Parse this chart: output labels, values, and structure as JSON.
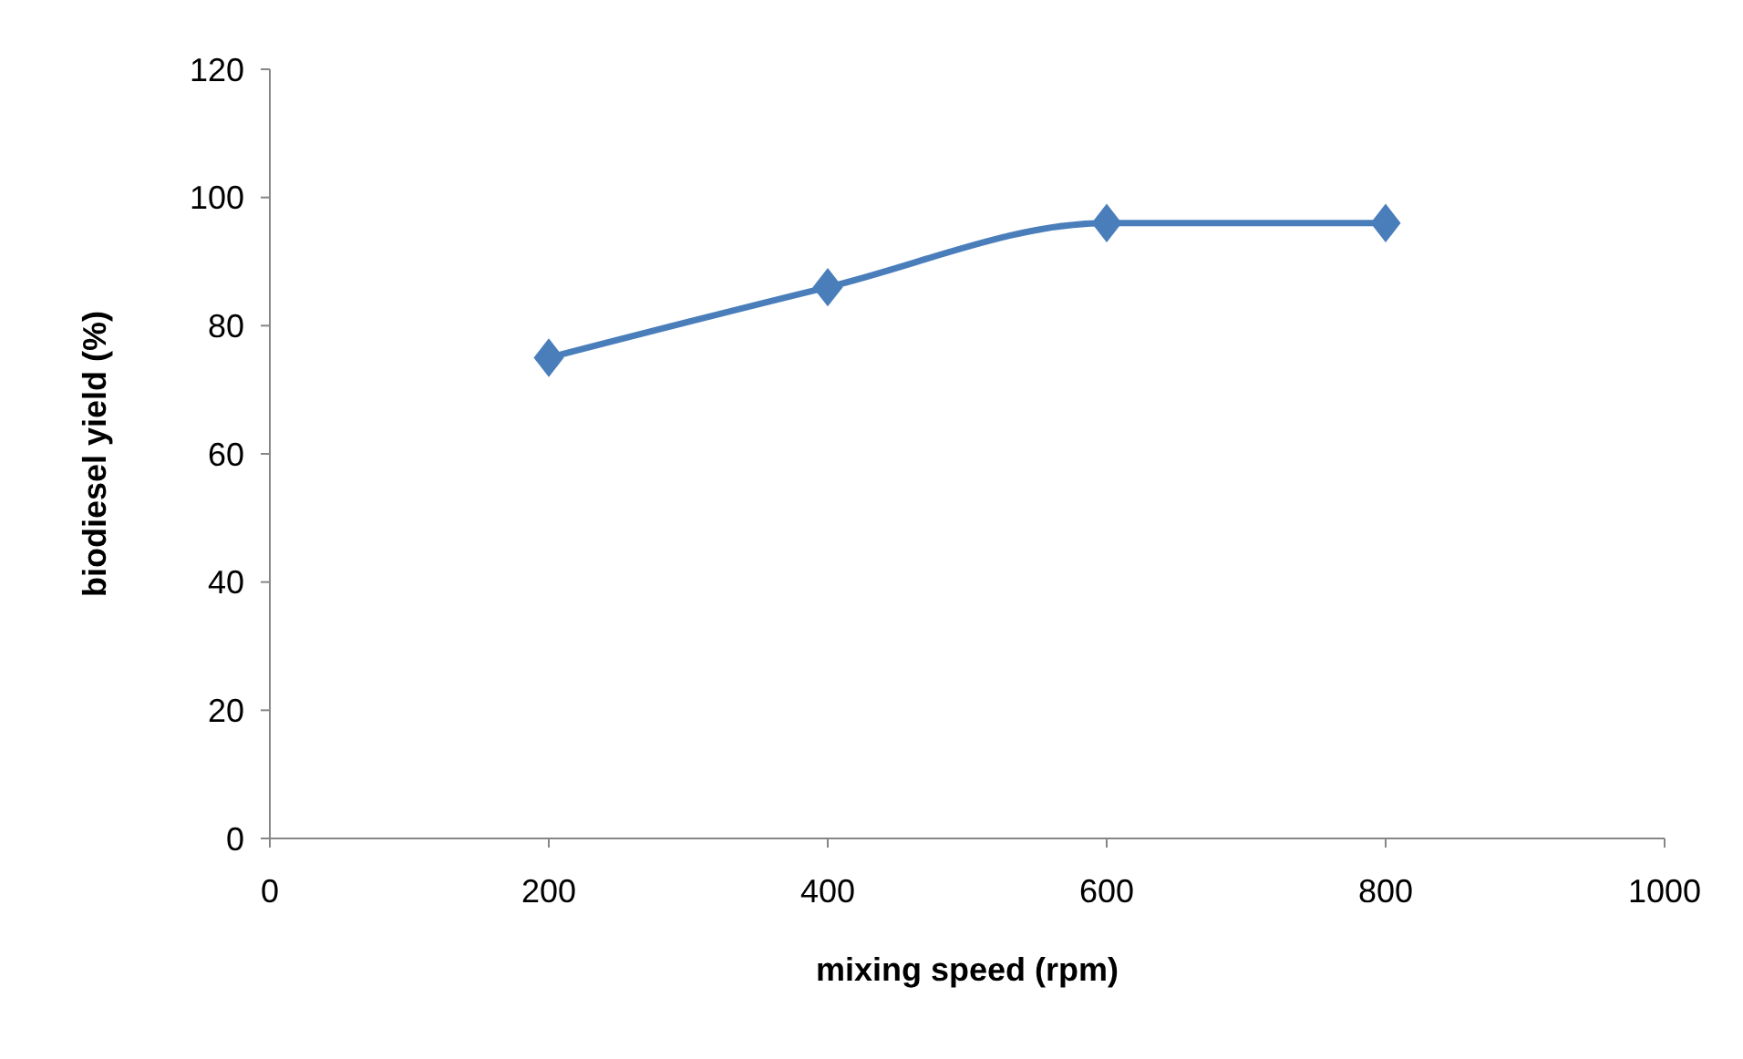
{
  "chart_data": {
    "type": "line",
    "xlabel": "mixing speed (rpm)",
    "ylabel": "biodiesel yield (%)",
    "x": [
      200,
      400,
      600,
      800
    ],
    "series": [
      {
        "color": "#4a7ebb",
        "values": [
          75,
          86,
          96,
          96
        ]
      }
    ],
    "xlim": [
      0,
      1000
    ],
    "xticks": [
      0,
      200,
      400,
      600,
      800,
      1000
    ],
    "ylim": [
      0,
      120
    ],
    "yticks": [
      0,
      20,
      40,
      60,
      80,
      100,
      120
    ],
    "grid": false,
    "marker": "diamond",
    "line_style": "solid"
  }
}
